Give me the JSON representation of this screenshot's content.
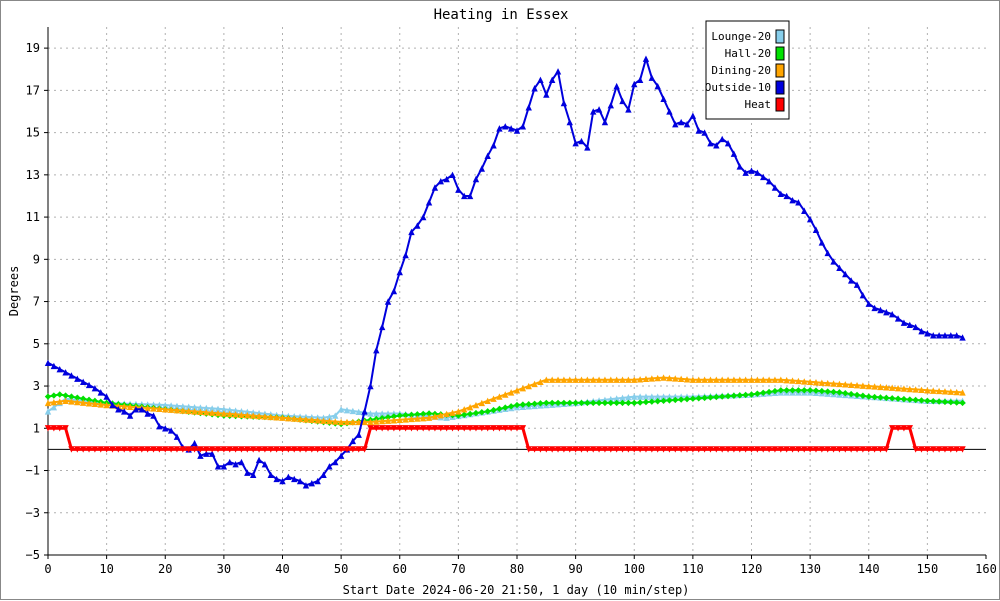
{
  "chart_data": {
    "type": "line",
    "title": "Heating in Essex",
    "xlabel": "Start Date 2024-06-20 21:50, 1 day (10 min/step)",
    "ylabel": "Degrees",
    "xlim": [
      0,
      160
    ],
    "ylim": [
      -5,
      20
    ],
    "x_ticks": [
      0,
      10,
      20,
      30,
      40,
      50,
      60,
      70,
      80,
      90,
      100,
      110,
      120,
      130,
      140,
      150,
      160
    ],
    "y_ticks": [
      -5,
      -3,
      -1,
      1,
      3,
      5,
      7,
      9,
      11,
      13,
      15,
      17,
      19
    ],
    "grid": true,
    "legend_position": "top-right",
    "reference_line": 0,
    "series": [
      {
        "name": "Lounge-20",
        "color": "#87ceeb",
        "marker": "triangle",
        "points": [
          [
            0,
            1.8
          ],
          [
            3,
            2.4
          ],
          [
            10,
            2.2
          ],
          [
            20,
            2.1
          ],
          [
            30,
            1.9
          ],
          [
            40,
            1.6
          ],
          [
            47,
            1.5
          ],
          [
            49,
            1.6
          ],
          [
            50,
            1.9
          ],
          [
            55,
            1.7
          ],
          [
            60,
            1.7
          ],
          [
            68,
            1.5
          ],
          [
            75,
            1.8
          ],
          [
            80,
            2.0
          ],
          [
            90,
            2.2
          ],
          [
            100,
            2.5
          ],
          [
            110,
            2.5
          ],
          [
            120,
            2.6
          ],
          [
            125,
            2.7
          ],
          [
            130,
            2.7
          ],
          [
            135,
            2.6
          ],
          [
            140,
            2.5
          ],
          [
            150,
            2.3
          ],
          [
            156,
            2.3
          ]
        ]
      },
      {
        "name": "Hall-20",
        "color": "#00e000",
        "marker": "diamond",
        "points": [
          [
            0,
            2.5
          ],
          [
            2,
            2.6
          ],
          [
            10,
            2.2
          ],
          [
            20,
            1.9
          ],
          [
            30,
            1.6
          ],
          [
            40,
            1.5
          ],
          [
            50,
            1.2
          ],
          [
            55,
            1.4
          ],
          [
            60,
            1.6
          ],
          [
            65,
            1.7
          ],
          [
            70,
            1.6
          ],
          [
            75,
            1.8
          ],
          [
            80,
            2.1
          ],
          [
            85,
            2.2
          ],
          [
            90,
            2.2
          ],
          [
            100,
            2.2
          ],
          [
            110,
            2.4
          ],
          [
            115,
            2.5
          ],
          [
            120,
            2.6
          ],
          [
            125,
            2.8
          ],
          [
            130,
            2.8
          ],
          [
            135,
            2.7
          ],
          [
            140,
            2.5
          ],
          [
            150,
            2.3
          ],
          [
            156,
            2.2
          ]
        ]
      },
      {
        "name": "Dining-20",
        "color": "#ffa500",
        "marker": "triangle",
        "points": [
          [
            0,
            2.2
          ],
          [
            3,
            2.3
          ],
          [
            10,
            2.1
          ],
          [
            20,
            1.9
          ],
          [
            30,
            1.7
          ],
          [
            40,
            1.5
          ],
          [
            50,
            1.3
          ],
          [
            55,
            1.3
          ],
          [
            60,
            1.4
          ],
          [
            65,
            1.5
          ],
          [
            70,
            1.8
          ],
          [
            75,
            2.3
          ],
          [
            80,
            2.8
          ],
          [
            85,
            3.3
          ],
          [
            90,
            3.3
          ],
          [
            100,
            3.3
          ],
          [
            105,
            3.4
          ],
          [
            110,
            3.3
          ],
          [
            120,
            3.3
          ],
          [
            125,
            3.3
          ],
          [
            130,
            3.2
          ],
          [
            135,
            3.1
          ],
          [
            140,
            3.0
          ],
          [
            150,
            2.8
          ],
          [
            156,
            2.7
          ]
        ]
      },
      {
        "name": "Outside-10",
        "color": "#0000dd",
        "marker": "triangle",
        "points": [
          [
            0,
            4.1
          ],
          [
            2,
            3.8
          ],
          [
            4,
            3.5
          ],
          [
            6,
            3.2
          ],
          [
            8,
            2.9
          ],
          [
            10,
            2.5
          ],
          [
            11,
            2.1
          ],
          [
            12,
            1.9
          ],
          [
            13,
            1.8
          ],
          [
            14,
            1.6
          ],
          [
            15,
            1.9
          ],
          [
            16,
            1.9
          ],
          [
            17,
            1.7
          ],
          [
            18,
            1.6
          ],
          [
            19,
            1.1
          ],
          [
            20,
            1.0
          ],
          [
            21,
            0.9
          ],
          [
            22,
            0.6
          ],
          [
            23,
            0.1
          ],
          [
            24,
            0.0
          ],
          [
            25,
            0.3
          ],
          [
            26,
            -0.3
          ],
          [
            27,
            -0.2
          ],
          [
            28,
            -0.2
          ],
          [
            29,
            -0.8
          ],
          [
            30,
            -0.8
          ],
          [
            31,
            -0.6
          ],
          [
            32,
            -0.7
          ],
          [
            33,
            -0.6
          ],
          [
            34,
            -1.1
          ],
          [
            35,
            -1.2
          ],
          [
            36,
            -0.5
          ],
          [
            37,
            -0.7
          ],
          [
            38,
            -1.2
          ],
          [
            39,
            -1.4
          ],
          [
            40,
            -1.5
          ],
          [
            41,
            -1.3
          ],
          [
            42,
            -1.4
          ],
          [
            43,
            -1.5
          ],
          [
            44,
            -1.7
          ],
          [
            45,
            -1.6
          ],
          [
            46,
            -1.5
          ],
          [
            47,
            -1.2
          ],
          [
            48,
            -0.8
          ],
          [
            49,
            -0.6
          ],
          [
            50,
            -0.3
          ],
          [
            51,
            0.0
          ],
          [
            52,
            0.4
          ],
          [
            53,
            0.7
          ],
          [
            54,
            1.8
          ],
          [
            55,
            3.0
          ],
          [
            56,
            4.7
          ],
          [
            57,
            5.8
          ],
          [
            58,
            7.0
          ],
          [
            59,
            7.5
          ],
          [
            60,
            8.4
          ],
          [
            61,
            9.2
          ],
          [
            62,
            10.3
          ],
          [
            63,
            10.6
          ],
          [
            64,
            11.0
          ],
          [
            65,
            11.7
          ],
          [
            66,
            12.4
          ],
          [
            67,
            12.7
          ],
          [
            68,
            12.8
          ],
          [
            69,
            13.0
          ],
          [
            70,
            12.3
          ],
          [
            71,
            12.0
          ],
          [
            72,
            12.0
          ],
          [
            73,
            12.8
          ],
          [
            74,
            13.3
          ],
          [
            75,
            13.9
          ],
          [
            76,
            14.4
          ],
          [
            77,
            15.2
          ],
          [
            78,
            15.3
          ],
          [
            79,
            15.2
          ],
          [
            80,
            15.1
          ],
          [
            81,
            15.3
          ],
          [
            82,
            16.2
          ],
          [
            83,
            17.1
          ],
          [
            84,
            17.5
          ],
          [
            85,
            16.8
          ],
          [
            86,
            17.5
          ],
          [
            87,
            17.9
          ],
          [
            88,
            16.4
          ],
          [
            89,
            15.5
          ],
          [
            90,
            14.5
          ],
          [
            91,
            14.6
          ],
          [
            92,
            14.3
          ],
          [
            93,
            16.0
          ],
          [
            94,
            16.1
          ],
          [
            95,
            15.5
          ],
          [
            96,
            16.3
          ],
          [
            97,
            17.2
          ],
          [
            98,
            16.5
          ],
          [
            99,
            16.1
          ],
          [
            100,
            17.3
          ],
          [
            101,
            17.5
          ],
          [
            102,
            18.5
          ],
          [
            103,
            17.6
          ],
          [
            104,
            17.2
          ],
          [
            105,
            16.6
          ],
          [
            106,
            16.0
          ],
          [
            107,
            15.4
          ],
          [
            108,
            15.5
          ],
          [
            109,
            15.4
          ],
          [
            110,
            15.8
          ],
          [
            111,
            15.1
          ],
          [
            112,
            15.0
          ],
          [
            113,
            14.5
          ],
          [
            114,
            14.4
          ],
          [
            115,
            14.7
          ],
          [
            116,
            14.5
          ],
          [
            117,
            14.0
          ],
          [
            118,
            13.4
          ],
          [
            119,
            13.1
          ],
          [
            120,
            13.2
          ],
          [
            121,
            13.1
          ],
          [
            122,
            12.9
          ],
          [
            123,
            12.7
          ],
          [
            124,
            12.4
          ],
          [
            125,
            12.1
          ],
          [
            126,
            12.0
          ],
          [
            127,
            11.8
          ],
          [
            128,
            11.7
          ],
          [
            129,
            11.3
          ],
          [
            130,
            10.9
          ],
          [
            131,
            10.4
          ],
          [
            132,
            9.8
          ],
          [
            133,
            9.3
          ],
          [
            134,
            8.9
          ],
          [
            135,
            8.6
          ],
          [
            136,
            8.3
          ],
          [
            137,
            8.0
          ],
          [
            138,
            7.8
          ],
          [
            139,
            7.3
          ],
          [
            140,
            6.9
          ],
          [
            141,
            6.7
          ],
          [
            142,
            6.6
          ],
          [
            143,
            6.5
          ],
          [
            144,
            6.4
          ],
          [
            145,
            6.2
          ],
          [
            146,
            6.0
          ],
          [
            147,
            5.9
          ],
          [
            148,
            5.8
          ],
          [
            149,
            5.6
          ],
          [
            150,
            5.5
          ],
          [
            151,
            5.4
          ],
          [
            152,
            5.4
          ],
          [
            153,
            5.4
          ],
          [
            154,
            5.4
          ],
          [
            155,
            5.4
          ],
          [
            156,
            5.3
          ]
        ]
      },
      {
        "name": "Heat",
        "color": "#ff0000",
        "marker": "triangle-down",
        "points": [
          [
            0,
            1
          ],
          [
            3,
            1
          ],
          [
            4,
            0
          ],
          [
            54,
            0
          ],
          [
            55,
            1
          ],
          [
            81,
            1
          ],
          [
            82,
            0
          ],
          [
            143,
            0
          ],
          [
            144,
            1
          ],
          [
            147,
            1
          ],
          [
            148,
            0
          ],
          [
            156,
            0
          ]
        ]
      }
    ]
  }
}
